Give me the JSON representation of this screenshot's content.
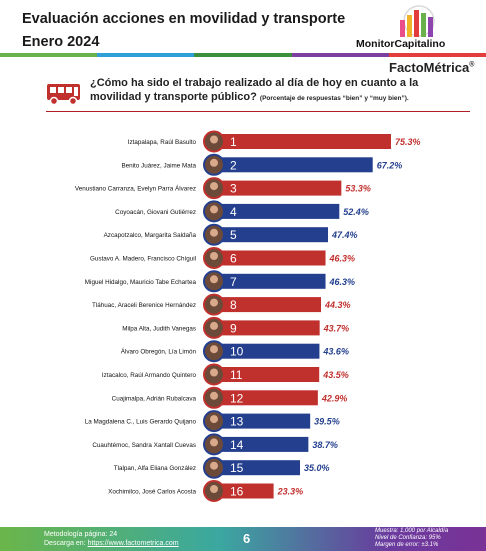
{
  "header": {
    "title_line1": "Evaluación  acciones  en movilidad  y transporte",
    "title_line2": "Enero 2024",
    "brand": "MonitorCapitalino",
    "brand2": "FactoMétrica",
    "brand2_mark": "®"
  },
  "question": {
    "text": "¿Cómo ha sido el trabajo realizado al día de hoy en cuanto a la movilidad y transporte público?",
    "note": "(Porcentaje de respuestas “bien” y “muy bien”)."
  },
  "colors": {
    "red": "#c0302d",
    "blue": "#233f8e",
    "red_text": "#c0302d",
    "blue_text": "#233f8e"
  },
  "chart_data": {
    "type": "bar",
    "orientation": "horizontal",
    "xlim": [
      0,
      100
    ],
    "categories": [
      "Iztapalapa, Raúl Basulto",
      "Benito Juárez, Jaime Mata",
      "Venustiano Carranza, Evelyn Parra Álvarez",
      "Coyoacán, Giovani Gutiérrez",
      "Azcapotzalco, Margarita Saldaña",
      "Gustavo A. Madero, Francisco Chíguil",
      "Miguel Hidalgo, Mauricio Tabe Echartea",
      "Tláhuac, Araceli Berenice Hernández",
      "Milpa Alta, Judith Vanegas",
      "Álvaro Obregón, Lía Limón",
      "Iztacalco, Raúl Armando Quintero",
      "Cuajimalpa, Adrián Rubalcava",
      "La Magdalena C., Luis Gerardo Quijano",
      "Cuauhtémoc, Sandra Xantall Cuevas",
      "Tlalpan, Alfa Eliana González",
      "Xochimilco, José Carlos Acosta"
    ],
    "ranks": [
      "1",
      "2",
      "3",
      "4",
      "5",
      "6",
      "7",
      "8",
      "9",
      "10",
      "11",
      "12",
      "13",
      "14",
      "15",
      "16"
    ],
    "values": [
      75.3,
      67.2,
      53.3,
      52.4,
      47.4,
      46.3,
      46.3,
      44.3,
      43.7,
      43.6,
      43.5,
      42.9,
      39.5,
      38.7,
      35.0,
      23.3
    ],
    "value_labels": [
      "75.3%",
      "67.2%",
      "53.3%",
      "52.4%",
      "47.4%",
      "46.3%",
      "46.3%",
      "44.3%",
      "43.7%",
      "43.6%",
      "43.5%",
      "42.9%",
      "39.5%",
      "38.7%",
      "35.0%",
      "23.3%"
    ],
    "bar_colors": [
      "red",
      "blue",
      "red",
      "blue",
      "blue",
      "red",
      "blue",
      "red",
      "red",
      "blue",
      "red",
      "red",
      "blue",
      "blue",
      "blue",
      "red"
    ]
  },
  "footer": {
    "metodologia": "Metodología página: 24",
    "descarga_prefix": "Descarga en: ",
    "descarga_url": "https://www.factometrica.com",
    "page": "6",
    "muestra": "Muestra: 1,000 por Alcaldía",
    "confianza": "Nivel de Confianza: 95%",
    "error": "Margen de error: ±3.1%"
  }
}
